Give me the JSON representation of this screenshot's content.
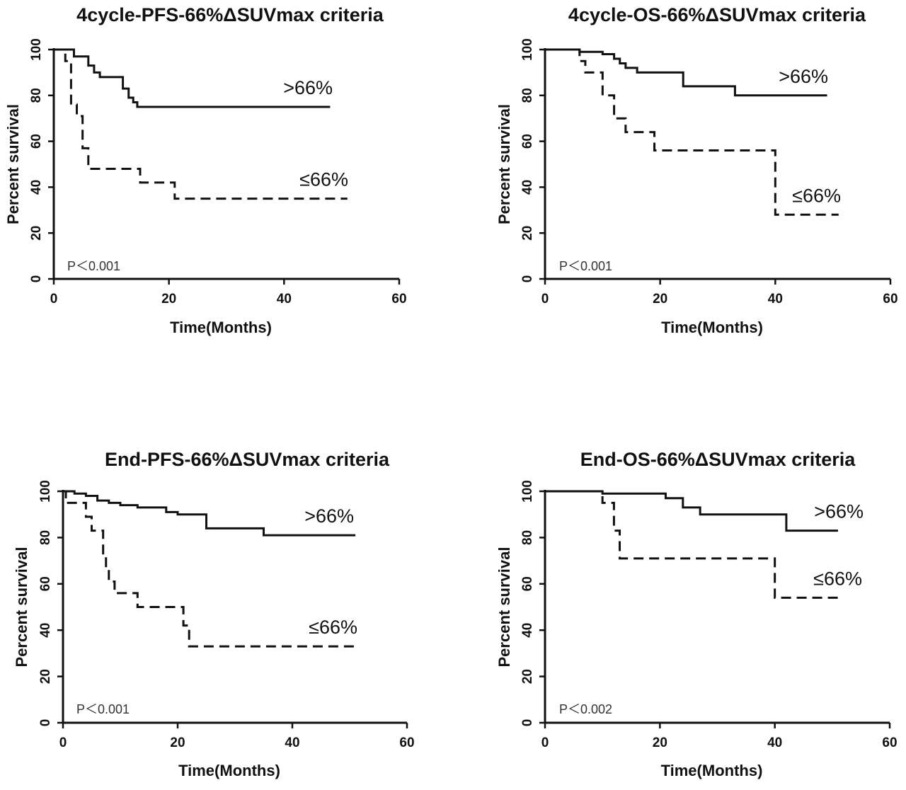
{
  "figure": {
    "panels": [
      {
        "id": "4cycle-pfs",
        "title": "4cycle-PFS-66%ΔSUVmax criteria",
        "p_value": "P＜0.001"
      },
      {
        "id": "4cycle-os",
        "title": "4cycle-OS-66%ΔSUVmax criteria",
        "p_value": "P＜0.001"
      },
      {
        "id": "end-pfs",
        "title": "End-PFS-66%ΔSUVmax criteria",
        "p_value": "P＜0.001"
      },
      {
        "id": "end-os",
        "title": "End-OS-66%ΔSUVmax criteria",
        "p_value": "P＜0.002"
      }
    ]
  },
  "chart_data": [
    {
      "type": "line",
      "subtype": "kaplan-meier",
      "title": "4cycle-PFS-66%ΔSUVmax criteria",
      "xlabel": "Time(Months)",
      "ylabel": "Percent survival",
      "xlim": [
        0,
        60
      ],
      "ylim": [
        0,
        100
      ],
      "xticks": [
        0,
        20,
        40,
        60
      ],
      "yticks": [
        0,
        20,
        40,
        60,
        80,
        100
      ],
      "grid": false,
      "annotation": "P＜0.001",
      "series": [
        {
          "name": ">66%",
          "style": "solid",
          "x": [
            0,
            3.5,
            6,
            7,
            8,
            9,
            12,
            13,
            13.8,
            14.5,
            15,
            48
          ],
          "y": [
            100,
            97,
            93,
            90,
            88,
            88,
            83,
            79,
            77,
            75,
            75,
            75
          ]
        },
        {
          "name": "≤66%",
          "style": "dashed",
          "x": [
            0,
            2,
            3,
            4,
            5,
            6,
            15,
            21,
            51
          ],
          "y": [
            100,
            95,
            76,
            71,
            57,
            48,
            42,
            35,
            35
          ]
        }
      ]
    },
    {
      "type": "line",
      "subtype": "kaplan-meier",
      "title": "4cycle-OS-66%ΔSUVmax criteria",
      "xlabel": "Time(Months)",
      "ylabel": "Percent survival",
      "xlim": [
        0,
        60
      ],
      "ylim": [
        0,
        100
      ],
      "xticks": [
        0,
        20,
        40,
        60
      ],
      "yticks": [
        0,
        20,
        40,
        60,
        80,
        100
      ],
      "grid": false,
      "annotation": "P＜0.001",
      "series": [
        {
          "name": ">66%",
          "style": "solid",
          "x": [
            0,
            6,
            10,
            12,
            13,
            14,
            16,
            24,
            33,
            49
          ],
          "y": [
            100,
            99,
            98,
            96,
            94,
            92,
            90,
            84,
            80,
            80
          ]
        },
        {
          "name": "≤66%",
          "style": "dashed",
          "x": [
            0,
            6,
            7,
            10,
            12,
            14,
            19,
            40,
            51
          ],
          "y": [
            100,
            95,
            90,
            80,
            70,
            64,
            56,
            28,
            28
          ]
        }
      ]
    },
    {
      "type": "line",
      "subtype": "kaplan-meier",
      "title": "End-PFS-66%ΔSUVmax criteria",
      "xlabel": "Time(Months)",
      "ylabel": "Percent survival",
      "xlim": [
        0,
        60
      ],
      "ylim": [
        0,
        100
      ],
      "xticks": [
        0,
        20,
        40,
        60
      ],
      "yticks": [
        0,
        20,
        40,
        60,
        80,
        100
      ],
      "grid": false,
      "annotation": "P＜0.001",
      "series": [
        {
          "name": ">66%",
          "style": "solid",
          "x": [
            0,
            2,
            4,
            6,
            8,
            10,
            13,
            18,
            20,
            25,
            35,
            51
          ],
          "y": [
            100,
            99,
            98,
            96,
            95,
            94,
            93,
            91,
            90,
            84,
            81,
            81
          ]
        },
        {
          "name": "≤66%",
          "style": "dashed",
          "x": [
            0,
            0.5,
            4,
            5,
            7,
            7.5,
            8,
            9,
            13,
            21,
            22,
            51
          ],
          "y": [
            100,
            95,
            89,
            83,
            72,
            67,
            61,
            56,
            50,
            42,
            33,
            33
          ]
        }
      ]
    },
    {
      "type": "line",
      "subtype": "kaplan-meier",
      "title": "End-OS-66%ΔSUVmax criteria",
      "xlabel": "Time(Months)",
      "ylabel": "Percent survival",
      "xlim": [
        0,
        60
      ],
      "ylim": [
        0,
        100
      ],
      "xticks": [
        0,
        20,
        40,
        60
      ],
      "yticks": [
        0,
        20,
        40,
        60,
        80,
        100
      ],
      "grid": false,
      "annotation": "P＜0.002",
      "series": [
        {
          "name": ">66%",
          "style": "solid",
          "x": [
            0,
            10,
            21,
            24,
            27,
            42,
            51
          ],
          "y": [
            100,
            99,
            97,
            93,
            90,
            83,
            83
          ]
        },
        {
          "name": "≤66%",
          "style": "dashed",
          "x": [
            0,
            10,
            12,
            13,
            40,
            51
          ],
          "y": [
            100,
            95,
            83,
            71,
            54,
            54
          ]
        }
      ]
    }
  ]
}
